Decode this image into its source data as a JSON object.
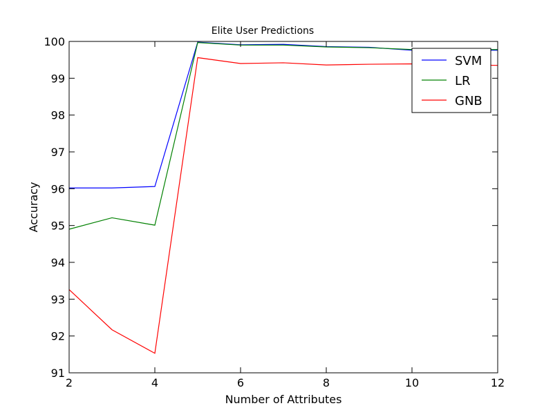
{
  "chart_data": {
    "type": "line",
    "title": "Elite User  Predictions",
    "xlabel": "Number of Attributes",
    "ylabel": "Accuracy",
    "xlim": [
      2,
      12
    ],
    "ylim": [
      91,
      100
    ],
    "xticks": [
      "2",
      "4",
      "6",
      "8",
      "10",
      "12"
    ],
    "yticks": [
      "91",
      "92",
      "93",
      "94",
      "95",
      "96",
      "97",
      "98",
      "99",
      "100"
    ],
    "legend_position": "top-right",
    "grid": false,
    "x": [
      2,
      3,
      4,
      5,
      6,
      7,
      8,
      9,
      10,
      11,
      12
    ],
    "series": [
      {
        "name": "SVM",
        "color": "#0000ff",
        "values": [
          96.02,
          96.02,
          96.06,
          99.98,
          99.91,
          99.92,
          99.86,
          99.84,
          99.76,
          99.76,
          99.76
        ]
      },
      {
        "name": "LR",
        "color": "#008000",
        "values": [
          94.9,
          95.21,
          95.01,
          99.97,
          99.9,
          99.9,
          99.85,
          99.83,
          99.78,
          99.78,
          99.78
        ]
      },
      {
        "name": "GNB",
        "color": "#ff0000",
        "values": [
          93.26,
          92.17,
          91.53,
          99.56,
          99.4,
          99.42,
          99.36,
          99.38,
          99.39,
          99.37,
          99.35
        ]
      }
    ]
  }
}
